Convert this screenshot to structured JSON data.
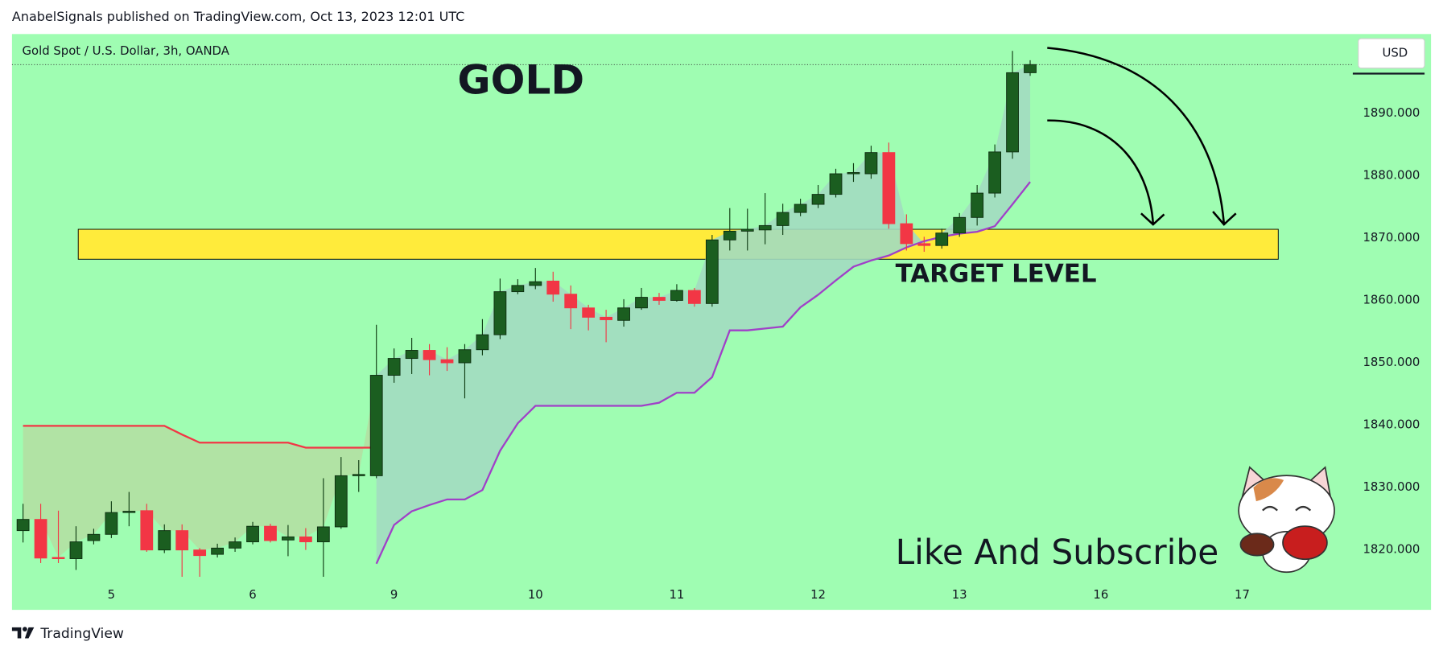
{
  "header": "AnabelSignals published on TradingView.com, Oct 13, 2023 12:01 UTC",
  "footer": "TradingView",
  "chart_data": {
    "type": "candlestick",
    "title": "Gold Spot / U.S. Dollar, 3h, OANDA",
    "currency": "USD",
    "annotations": [
      "GOLD",
      "TARGET LEVEL",
      "Like And Subscribe"
    ],
    "categories": [
      null,
      null,
      null,
      null,
      null,
      "5",
      null,
      null,
      null,
      null,
      null,
      null,
      null,
      "6",
      null,
      null,
      null,
      null,
      null,
      null,
      null,
      "9",
      null,
      null,
      null,
      null,
      null,
      null,
      null,
      "10",
      null,
      null,
      null,
      null,
      null,
      null,
      null,
      "11",
      null,
      null,
      null,
      null,
      null,
      null,
      null,
      "12",
      null,
      null,
      null,
      null,
      null,
      null,
      null,
      "13",
      null,
      null,
      null,
      null,
      null,
      null,
      null,
      "16",
      null,
      null,
      null,
      null,
      null,
      null,
      null,
      "17"
    ],
    "open": [
      1823.1,
      1824.9,
      1818.8,
      1818.6,
      1821.5,
      1822.5,
      1826.0,
      1826.3,
      1820.0,
      1823.1,
      1820.0,
      1819.3,
      1820.3,
      1821.3,
      1823.8,
      1821.6,
      1822.1,
      1821.3,
      1823.7,
      1831.9,
      1831.9,
      1848.0,
      1850.7,
      1852.0,
      1850.5,
      1850.0,
      1852.1,
      1854.5,
      1861.4,
      1862.4,
      1863.1,
      1861.0,
      1858.8,
      1857.3,
      1856.8,
      1858.8,
      1860.5,
      1860.0,
      1861.6,
      1859.5,
      1869.7,
      1871.1,
      1871.3,
      1872.0,
      1874.1,
      1875.4,
      1877.0,
      1880.3,
      1880.3,
      1883.7,
      1872.3,
      1869.1,
      1868.8,
      1870.8,
      1873.3,
      1877.2,
      1883.8,
      1896.5,
      null,
      null,
      null,
      null,
      null,
      null,
      null,
      null,
      null,
      null,
      null,
      null
    ],
    "high": [
      1827.4,
      1827.4,
      1826.3,
      1823.8,
      1823.4,
      1827.8,
      1829.3,
      1827.4,
      1824.1,
      1824.1,
      1820.3,
      1821.0,
      1822.0,
      1824.5,
      1824.2,
      1824.0,
      1823.5,
      1831.5,
      1834.9,
      1834.4,
      1856.1,
      1852.3,
      1854.0,
      1853.0,
      1852.5,
      1853.0,
      1857.0,
      1863.5,
      1863.4,
      1865.2,
      1864.6,
      1862.4,
      1859.3,
      1858.5,
      1860.2,
      1862.0,
      1861.2,
      1862.6,
      1862.0,
      1870.5,
      1874.8,
      1874.7,
      1877.2,
      1875.5,
      1876.3,
      1878.5,
      1881.1,
      1882.0,
      1884.8,
      1885.3,
      1873.8,
      1870.2,
      1871.5,
      1874.0,
      1878.5,
      1885.0,
      1900.0,
      1898.5,
      null,
      null,
      null,
      null,
      null,
      null,
      null,
      null,
      null,
      null,
      null,
      null
    ],
    "low": [
      1821.2,
      1817.9,
      1817.9,
      1816.8,
      1820.9,
      1821.9,
      1823.8,
      1819.7,
      1819.5,
      1815.7,
      1815.7,
      1818.8,
      1819.7,
      1820.9,
      1821.2,
      1819.0,
      1820.0,
      1815.7,
      1823.4,
      1829.3,
      1831.5,
      1846.8,
      1848.2,
      1848.0,
      1848.7,
      1844.3,
      1851.2,
      1853.8,
      1861.0,
      1861.8,
      1859.8,
      1855.4,
      1855.2,
      1853.3,
      1855.8,
      1858.5,
      1859.3,
      1859.8,
      1859.0,
      1859.0,
      1868.0,
      1868.0,
      1869.0,
      1870.5,
      1873.5,
      1874.8,
      1876.5,
      1879.0,
      1879.5,
      1871.5,
      1868.0,
      1867.8,
      1868.3,
      1870.2,
      1872.0,
      1876.5,
      1882.7,
      1896.0,
      null,
      null,
      null,
      null,
      null,
      null,
      null,
      null,
      null,
      null,
      null,
      null
    ],
    "close": [
      1824.9,
      1818.7,
      1818.6,
      1821.3,
      1822.5,
      1826.0,
      1826.2,
      1820.0,
      1823.1,
      1820.0,
      1819.1,
      1820.3,
      1821.3,
      1823.8,
      1821.5,
      1822.1,
      1821.3,
      1823.7,
      1831.9,
      1832.1,
      1848.0,
      1850.7,
      1852.0,
      1850.5,
      1850.0,
      1852.1,
      1854.5,
      1861.4,
      1862.4,
      1863.0,
      1861.0,
      1858.8,
      1857.3,
      1856.9,
      1858.8,
      1860.5,
      1860.0,
      1861.6,
      1859.5,
      1869.7,
      1871.1,
      1871.4,
      1872.0,
      1874.1,
      1875.4,
      1877.0,
      1880.3,
      1880.5,
      1883.7,
      1872.3,
      1869.1,
      1868.8,
      1870.8,
      1873.3,
      1877.2,
      1883.8,
      1896.5,
      1897.8,
      null,
      null,
      null,
      null,
      null,
      null,
      null,
      null,
      null,
      null,
      null,
      null
    ],
    "up_color": "#1b5e20",
    "down_color": "#f23645",
    "indicators": [
      {
        "color": "#f23645",
        "fill": "#b3e0a2",
        "values": [
          1839.9,
          1839.9,
          1839.9,
          1839.9,
          1839.9,
          1839.9,
          1839.9,
          1839.9,
          1839.9,
          1838.5,
          1837.2,
          1837.2,
          1837.2,
          1837.2,
          1837.2,
          1837.2,
          1836.4,
          1836.4,
          1836.4,
          1836.4,
          1836.4,
          null,
          null,
          null,
          null,
          null,
          null,
          null,
          null,
          null,
          null,
          null,
          null,
          null,
          null,
          null,
          null,
          null,
          null,
          null,
          null,
          null,
          null,
          null,
          null,
          null,
          null,
          null,
          null,
          null,
          null,
          null,
          null,
          null,
          null,
          null,
          null,
          null,
          null,
          null,
          null,
          null,
          null,
          null,
          null,
          null,
          null,
          null,
          null,
          null
        ]
      },
      {
        "color": "#a040c8",
        "fill": "#a2dcc0",
        "values": [
          null,
          null,
          null,
          null,
          null,
          null,
          null,
          null,
          null,
          null,
          null,
          null,
          null,
          null,
          null,
          null,
          null,
          null,
          null,
          null,
          1817.8,
          1824,
          1826.2,
          1827.2,
          1828.1,
          1828.1,
          1829.6,
          1835.9,
          1840.3,
          1843.1,
          1843.1,
          1843.1,
          1843.1,
          1843.1,
          1843.1,
          1843.1,
          1843.6,
          1845.2,
          1845.2,
          1847.7,
          1855.2,
          1855.2,
          1855.5,
          1855.8,
          1858.9,
          1860.9,
          1863.2,
          1865.4,
          1866.4,
          1867.2,
          1868.5,
          1869.5,
          1870.2,
          1870.7,
          1871.0,
          1871.9,
          1875.4,
          1879.0,
          null,
          null,
          null,
          null,
          null,
          null,
          null,
          null,
          null,
          null,
          null,
          null
        ]
      }
    ],
    "zone": {
      "range": [
        1866.6,
        1871.4
      ],
      "color": "#ffeb3b"
    },
    "ylim": [
      1810.4,
      1902.7
    ],
    "yticks": [
      {
        "value": 1820,
        "label": "1820.000"
      },
      {
        "value": 1830,
        "label": "1830.000"
      },
      {
        "value": 1840,
        "label": "1840.000"
      },
      {
        "value": 1850,
        "label": "1850.000"
      },
      {
        "value": 1860,
        "label": "1860.000"
      },
      {
        "value": 1870,
        "label": "1870.000"
      },
      {
        "value": 1880,
        "label": "1880.000"
      },
      {
        "value": 1890,
        "label": "1890.000"
      }
    ],
    "grid": false
  }
}
